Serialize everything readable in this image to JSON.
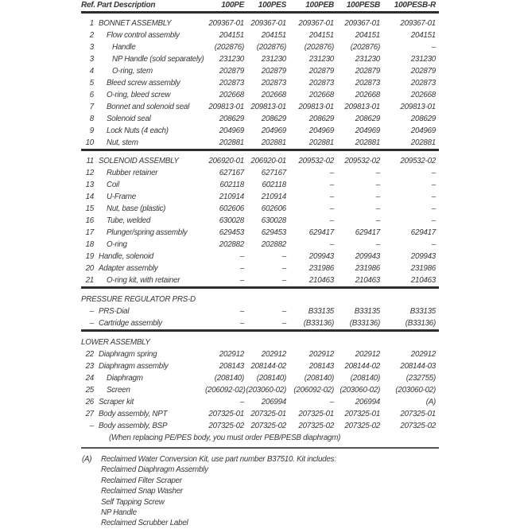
{
  "page": {
    "text_color": "#363636",
    "rule_color": "#2d2d2d",
    "light_rule_color": "#555555",
    "background": "#ffffff"
  },
  "table": {
    "header": {
      "ref": "Ref.",
      "desc": "Part Description",
      "models": [
        "100PE",
        "100PES",
        "100PEB",
        "100PESB",
        "100PESB-R"
      ]
    },
    "sections": [
      {
        "id": "bonnet-assembly",
        "title": null,
        "rows": [
          {
            "ref": "1",
            "desc": "BONNET ASSEMBLY",
            "indent": 0,
            "values": [
              "209367-01",
              "209367-01",
              "209367-01",
              "209367-01",
              "209367-01"
            ]
          },
          {
            "ref": "2",
            "desc": "Flow control assembly",
            "indent": 1,
            "values": [
              "204151",
              "204151",
              "204151",
              "204151",
              "204151"
            ]
          },
          {
            "ref": "3",
            "desc": "Handle",
            "indent": 2,
            "values": [
              "(202876)",
              "(202876)",
              "(202876)",
              "(202876)",
              "–"
            ]
          },
          {
            "ref": "3",
            "desc": "NP Handle (sold separately)",
            "indent": 2,
            "values": [
              "231230",
              "231230",
              "231230",
              "231230",
              "231230"
            ]
          },
          {
            "ref": "4",
            "desc": "O-ring, stem",
            "indent": 2,
            "values": [
              "202879",
              "202879",
              "202879",
              "202879",
              "202879"
            ]
          },
          {
            "ref": "5",
            "desc": "Bleed screw assembly",
            "indent": 1,
            "values": [
              "202873",
              "202873",
              "202873",
              "202873",
              "202873"
            ]
          },
          {
            "ref": "6",
            "desc": "O-ring, bleed screw",
            "indent": 1,
            "values": [
              "202668",
              "202668",
              "202668",
              "202668",
              "202668"
            ]
          },
          {
            "ref": "7",
            "desc": "Bonnet and solenoid seal",
            "indent": 1,
            "values": [
              "209813-01",
              "209813-01",
              "209813-01",
              "209813-01",
              "209813-01"
            ]
          },
          {
            "ref": "8",
            "desc": "Solenoid seal",
            "indent": 1,
            "values": [
              "208629",
              "208629",
              "208629",
              "208629",
              "208629"
            ]
          },
          {
            "ref": "9",
            "desc": "Lock Nuts (4 each)",
            "indent": 1,
            "values": [
              "204969",
              "204969",
              "204969",
              "204969",
              "204969"
            ]
          },
          {
            "ref": "10",
            "desc": "Nut, stem",
            "indent": 1,
            "values": [
              "202881",
              "202881",
              "202881",
              "202881",
              "202881"
            ]
          }
        ]
      },
      {
        "id": "solenoid-assembly",
        "title": null,
        "rows": [
          {
            "ref": "11",
            "desc": "SOLENOID ASSEMBLY",
            "indent": 0,
            "values": [
              "206920-01",
              "206920-01",
              "209532-02",
              "209532-02",
              "209532-02"
            ]
          },
          {
            "ref": "12",
            "desc": "Rubber retainer",
            "indent": 1,
            "values": [
              "627167",
              "627167",
              "–",
              "–",
              "–"
            ]
          },
          {
            "ref": "13",
            "desc": "Coil",
            "indent": 1,
            "values": [
              "602118",
              "602118",
              "–",
              "–",
              "–"
            ]
          },
          {
            "ref": "14",
            "desc": "U-Frame",
            "indent": 1,
            "values": [
              "210914",
              "210914",
              "–",
              "–",
              "–"
            ]
          },
          {
            "ref": "15",
            "desc": "Nut, base (plastic)",
            "indent": 1,
            "values": [
              "602606",
              "602606",
              "–",
              "–",
              "–"
            ]
          },
          {
            "ref": "16",
            "desc": "Tube, welded",
            "indent": 1,
            "values": [
              "630028",
              "630028",
              "–",
              "–",
              "–"
            ]
          },
          {
            "ref": "17",
            "desc": "Plunger/spring assembly",
            "indent": 1,
            "values": [
              "629453",
              "629453",
              "629417",
              "629417",
              "629417"
            ]
          },
          {
            "ref": "18",
            "desc": "O-ring",
            "indent": 1,
            "values": [
              "202882",
              "202882",
              "–",
              "–",
              "–"
            ]
          },
          {
            "ref": "19",
            "desc": "Handle, solenoid",
            "indent": 0,
            "values": [
              "–",
              "–",
              "209943",
              "209943",
              "209943"
            ]
          },
          {
            "ref": "20",
            "desc": "Adapter assembly",
            "indent": 0,
            "values": [
              "–",
              "–",
              "231986",
              "231986",
              "231986"
            ]
          },
          {
            "ref": "21",
            "desc": "O-ring kit, with retainer",
            "indent": 1,
            "values": [
              "–",
              "–",
              "210463",
              "210463",
              "210463"
            ]
          }
        ]
      },
      {
        "id": "pressure-regulator",
        "title": "PRESSURE REGULATOR PRS-D",
        "rows": [
          {
            "ref": "–",
            "desc": "PRS-Dial",
            "indent": 0,
            "values": [
              "–",
              "–",
              "B33135",
              "B33135",
              "B33135"
            ]
          },
          {
            "ref": "–",
            "desc": "Cartridge assembly",
            "indent": 0,
            "values": [
              "–",
              "–",
              "(B33136)",
              "(B33136)",
              "(B33136)"
            ]
          }
        ]
      },
      {
        "id": "lower-assembly",
        "title": "LOWER ASSEMBLY",
        "rows": [
          {
            "ref": "22",
            "desc": "Diaphragm spring",
            "indent": 0,
            "values": [
              "202912",
              "202912",
              "202912",
              "202912",
              "202912"
            ]
          },
          {
            "ref": "23",
            "desc": "Diaphragm assembly",
            "indent": 0,
            "values": [
              "208143",
              "208144-02",
              "208143",
              "208144-02",
              "208144-03"
            ]
          },
          {
            "ref": "24",
            "desc": "Diaphragm",
            "indent": 1,
            "values": [
              "(208140)",
              "(208140)",
              "(208140)",
              "(208140)",
              "(232755)"
            ]
          },
          {
            "ref": "25",
            "desc": "Screen",
            "indent": 1,
            "values": [
              "(206092-02)",
              "(203060-02)",
              "(206092-02)",
              "(203060-02)",
              "(203060-02)"
            ]
          },
          {
            "ref": "26",
            "desc": "Scraper kit",
            "indent": 0,
            "values": [
              "–",
              "206994",
              "–",
              "206994",
              "(A)"
            ]
          },
          {
            "ref": "27",
            "desc": "Body assembly, NPT",
            "indent": 0,
            "values": [
              "207325-01",
              "207325-01",
              "207325-01",
              "207325-01",
              "207325-01"
            ]
          },
          {
            "ref": "–",
            "desc": "Body assembly, BSP",
            "indent": 0,
            "values": [
              "207325-02",
              "207325-02",
              "207325-02",
              "207325-02",
              "207325-02"
            ]
          },
          {
            "ref": "",
            "desc": "(When replacing PE/PES body, you must order PEB/PESB diaphragm)",
            "indent": 1,
            "note": true,
            "values": []
          }
        ]
      }
    ]
  },
  "footnote": {
    "label": "(A)",
    "title": "Reclaimed Water Conversion Kit, use part number B37510.  Kit includes:",
    "items": [
      "Reclaimed Diaphragm Assembly",
      "Reclaimed Filter Scraper",
      "Reclaimed Snap Washer",
      "Self Tapping Screw",
      "NP Handle",
      "Reclaimed Scrubber Label"
    ]
  }
}
